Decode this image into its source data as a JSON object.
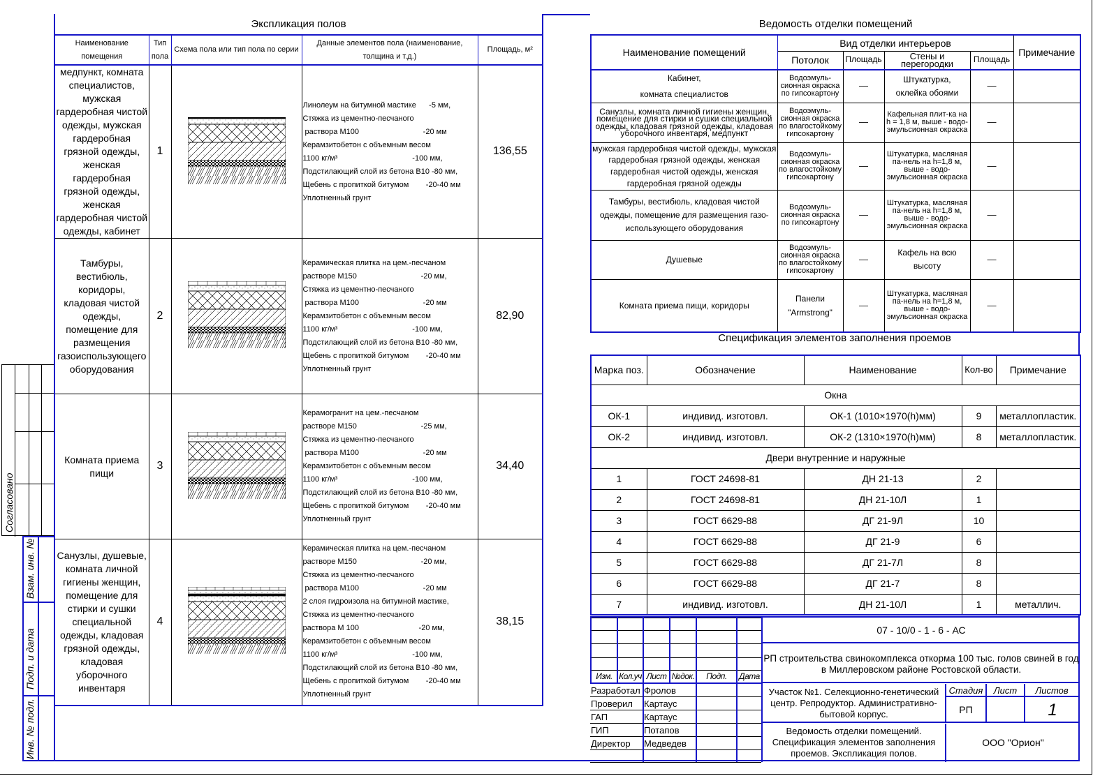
{
  "floors": {
    "title": "Экспликация полов",
    "headers": [
      "Наименование помещения",
      "Тип пола",
      "Схема пола или тип пола по серии",
      "Данные элементов пола (наименование, толщина и т.д.)",
      "Площадь, м²"
    ],
    "rows": [
      {
        "name": "медпункт, комната специалистов, мужская гардеробная чистой одежды, мужская гардеробная грязной одежды, женская гардеробная грязной одежды, женская гардеробная чистой одежды, кабинет",
        "type": "1",
        "data": "Линолеум на битумной мастике      -5 мм,\nСтяжка из цементно-песчаного\n раствора М100                              -20 мм\nКерамзитобетон с объемным весом\n1100 кг/м³                                   -100 мм,\nПодстилающий слой из бетона В10 -80 мм,\nЩебень с пропиткой битумом        -20-40 мм\nУплотненный грунт",
        "area": "136,55"
      },
      {
        "name": "Тамбуры, вестибюль, коридоры, кладовая чистой одежды, помещение для размещения газоиспользующего оборудования",
        "type": "2",
        "data": "Керамическая плитка на цем.-песчаном\nрастворе М150                              -20 мм,\nСтяжка из цементно-песчаного\n раствора М100                              -20 мм\nКерамзитобетон с объемным весом\n1100 кг/м³                                   -100 мм,\nПодстилающий слой из бетона В10 -80 мм,\nЩебень с пропиткой битумом        -20-40 мм\nУплотненный грунт",
        "area": "82,90"
      },
      {
        "name": "Комната приема пищи",
        "type": "3",
        "data": "Керамогранит на цем.-песчаном\nрастворе М150                              -25 мм,\nСтяжка из цементно-песчаного\n раствора М100                              -20 мм\nКерамзитобетон с объемным весом\n1100 кг/м³                                   -100 мм,\nПодстилающий слой из бетона В10 -80 мм,\nЩебень с пропиткой битумом        -20-40 мм\nУплотненный грунт",
        "area": "34,40"
      },
      {
        "name": "Санузлы, душевые, комната личной гигиены женщин, помещение для стирки и сушки специальной одежды, кладовая грязной одежды, кладовая уборочного инвентаря",
        "type": "4",
        "data": "Керамическая плитка на цем.-песчаном\nрастворе М150                              -20 мм,\nСтяжка из цементно-песчаного\n раствора М100                              -20 мм\n2 слоя гидроизола на битумной мастике,\nСтяжка из цементно-песчаного\nраствора М 100                            -20 мм,\nКерамзитобетон с объемным весом\n1100 кг/м³                                   -100 мм,\nПодстилающий слой из бетона В10 -80 мм,\nЩебень с пропиткой битумом        -20-40 мм\nУплотненный грунт",
        "area": "38,15"
      }
    ]
  },
  "finish": {
    "title": "Ведомость отделки помещений",
    "h_name": "Наименование помещений",
    "h_group": "Вид отделки интерьеров",
    "h_ceiling": "Потолок",
    "h_area1": "Площадь",
    "h_walls": "Стены и перегородки",
    "h_area2": "Площадь",
    "h_note": "Примечание",
    "rows": [
      {
        "name": "Кабинет,\nкомната специалистов",
        "ceiling": "Водоэмуль-сионная окраска по гипсокартону",
        "a1": "—",
        "walls": "Штукатурка,\nоклейка обоями",
        "a2": "—",
        "note": ""
      },
      {
        "name": "Санузлы, комната личной гигиены женщин, помещение для стирки и сушки специальной одежды, кладовая грязной одежды, кладовая уборочного инвентаря, медпункт",
        "ceiling": "Водоэмуль-сионная окраска по влагостойкому гипсокартону",
        "a1": "—",
        "walls": "Кафельная плит-ка на h = 1,8 м, выше - водо-эмульсионная окраска",
        "a2": "—",
        "note": ""
      },
      {
        "name": "мужская гардеробная чистой одежды, мужская гардеробная грязной одежды, женская гардеробная чистой одежды, женская гардеробная грязной одежды",
        "ceiling": "Водоэмуль-сионная окраска по влагостойкому гипсокартону",
        "a1": "—",
        "walls": "Штукатурка, масляная па-нель на h=1,8 м, выше - водо-эмульсионная окраска",
        "a2": "—",
        "note": ""
      },
      {
        "name": "Тамбуры, вестибюль, кладовая чистой одежды, помещение для размещения газо-использующего оборудования",
        "ceiling": "Водоэмуль-сионная окраска по гипсокартону",
        "a1": "—",
        "walls": "Штукатурка, масляная па-нель на h=1,8 м, выше - водо-эмульсионная окраска",
        "a2": "—",
        "note": ""
      },
      {
        "name": "Душевые",
        "ceiling": "Водоэмуль-сионная окраска по влагостойкому гипсокартону",
        "a1": "—",
        "walls": "Кафель на всю высоту",
        "a2": "—",
        "note": ""
      },
      {
        "name": "Комната приема пищи, коридоры",
        "ceiling": "Панели \"Armstrong\"",
        "a1": "—",
        "walls": "Штукатурка, масляная па-нель на h=1,8 м, выше - водо-эмульсионная окраска",
        "a2": "—",
        "note": ""
      }
    ]
  },
  "spec": {
    "title": "Спецификация элементов заполнения проемов",
    "headers": [
      "Марка поз.",
      "Обозначение",
      "Наименование",
      "Кол-во",
      "Примечание"
    ],
    "group1": "Окна",
    "windows": [
      [
        "ОК-1",
        "индивид. изготовл.",
        "ОК-1 (1010×1970(h)мм)",
        "9",
        "металлопластик."
      ],
      [
        "ОК-2",
        "индивид. изготовл.",
        "ОК-2 (1310×1970(h)мм)",
        "8",
        "металлопластик."
      ]
    ],
    "group2": "Двери внутренние и наружные",
    "doors": [
      [
        "1",
        "ГОСТ 24698-81",
        "ДН 21-13",
        "2",
        ""
      ],
      [
        "2",
        "ГОСТ 24698-81",
        "ДН 21-10Л",
        "1",
        ""
      ],
      [
        "3",
        "ГОСТ 6629-88",
        "ДГ 21-9Л",
        "10",
        ""
      ],
      [
        "4",
        "ГОСТ 6629-88",
        "ДГ 21-9",
        "6",
        ""
      ],
      [
        "5",
        "ГОСТ 6629-88",
        "ДГ 21-7Л",
        "8",
        ""
      ],
      [
        "6",
        "ГОСТ 6629-88",
        "ДГ 21-7",
        "8",
        ""
      ],
      [
        "7",
        "индивид. изготовл.",
        "ДН 21-10Л",
        "1",
        "металлич."
      ]
    ]
  },
  "stamp": {
    "code": "07 - 10/0 - 1 - 6 - АС",
    "project": "РП строительства свинокомплекса откорма 100 тыс. голов свиней в год в Миллеровском районе Ростовской области.",
    "cols": [
      "Изм.",
      "Кол.уч",
      "Лист",
      "№док.",
      "Подп.",
      "Дата"
    ],
    "roles": [
      [
        "Разработал",
        "Фролов"
      ],
      [
        "Проверил",
        "Картаус"
      ],
      [
        "ГАП",
        "Картаус"
      ],
      [
        "ГИП",
        "Потапов"
      ],
      [
        "Директор",
        "Медведев"
      ]
    ],
    "object": "Участок №1. Селекционно-генетический центр. Репродуктор. Административно-бытовой корпус.",
    "stage_h": "Стадия",
    "sheet_h": "Лист",
    "sheets_h": "Листов",
    "stage": "РП",
    "sheet": "",
    "sheets": "1",
    "sheet_title": "Ведомость отделки помещений. Спецификация элементов заполнения проемов. Экспликация полов.",
    "company": "ООО \"Орион\""
  },
  "margin": {
    "agreed": "Согласовано",
    "inv_replace": "Взам. инв. №",
    "sign_date": "Подп. и дата",
    "inv_orig": "Инв. № подл."
  }
}
